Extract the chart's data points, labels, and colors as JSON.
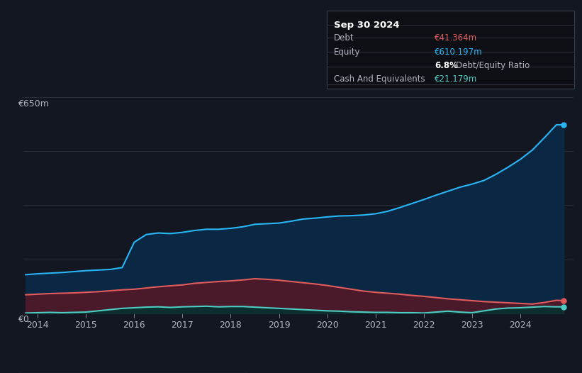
{
  "background_color": "#131722",
  "plot_bg_color": "#131722",
  "tooltip": {
    "date": "Sep 30 2024",
    "debt_label": "Debt",
    "debt_value": "€41.364m",
    "equity_label": "Equity",
    "equity_value": "€610.197m",
    "ratio_value": "6.8%",
    "ratio_label": "Debt/Equity Ratio",
    "cash_label": "Cash And Equivalents",
    "cash_value": "€21.179m"
  },
  "ylabel_top": "€650m",
  "ylabel_zero": "€0",
  "ylim": [
    0,
    700
  ],
  "xlim_start": 2013.7,
  "xlim_end": 2025.1,
  "x_ticks": [
    2014,
    2015,
    2016,
    2017,
    2018,
    2019,
    2020,
    2021,
    2022,
    2023,
    2024
  ],
  "grid_color": "#2a2e39",
  "line_color_debt": "#e05c5c",
  "line_color_equity": "#29b6f6",
  "line_color_cash": "#4ecdc4",
  "fill_color_debt": "#4a1a2a",
  "fill_color_equity": "#0a2744",
  "fill_color_cash": "#0d2e2e",
  "legend_box_color": "#1e222d",
  "legend_border_color": "#363a45",
  "text_color_main": "#b2b5be",
  "text_color_debt_val": "#e05c5c",
  "text_color_equity_val": "#29b6f6",
  "text_color_cash_val": "#4ecdc4",
  "text_color_white": "#ffffff",
  "equity_data": {
    "years": [
      2013.75,
      2014.0,
      2014.25,
      2014.5,
      2014.75,
      2015.0,
      2015.25,
      2015.5,
      2015.75,
      2016.0,
      2016.25,
      2016.5,
      2016.75,
      2017.0,
      2017.25,
      2017.5,
      2017.75,
      2018.0,
      2018.25,
      2018.5,
      2018.75,
      2019.0,
      2019.25,
      2019.5,
      2019.75,
      2020.0,
      2020.25,
      2020.5,
      2020.75,
      2021.0,
      2021.25,
      2021.5,
      2021.75,
      2022.0,
      2022.25,
      2022.5,
      2022.75,
      2023.0,
      2023.25,
      2023.5,
      2023.75,
      2024.0,
      2024.25,
      2024.5,
      2024.75,
      2024.9
    ],
    "values": [
      125,
      128,
      130,
      132,
      135,
      138,
      140,
      142,
      148,
      230,
      255,
      260,
      258,
      262,
      268,
      272,
      272,
      275,
      280,
      288,
      290,
      292,
      298,
      305,
      308,
      312,
      315,
      316,
      318,
      322,
      330,
      342,
      355,
      368,
      382,
      395,
      408,
      418,
      430,
      450,
      473,
      498,
      528,
      568,
      610,
      610
    ]
  },
  "debt_data": {
    "years": [
      2013.75,
      2014.0,
      2014.25,
      2014.5,
      2014.75,
      2015.0,
      2015.25,
      2015.5,
      2015.75,
      2016.0,
      2016.25,
      2016.5,
      2016.75,
      2017.0,
      2017.25,
      2017.5,
      2017.75,
      2018.0,
      2018.25,
      2018.5,
      2018.75,
      2019.0,
      2019.25,
      2019.5,
      2019.75,
      2020.0,
      2020.25,
      2020.5,
      2020.75,
      2021.0,
      2021.25,
      2021.5,
      2021.75,
      2022.0,
      2022.25,
      2022.5,
      2022.75,
      2023.0,
      2023.25,
      2023.5,
      2023.75,
      2024.0,
      2024.25,
      2024.5,
      2024.75,
      2024.9
    ],
    "values": [
      60,
      62,
      64,
      65,
      66,
      68,
      70,
      73,
      76,
      78,
      82,
      86,
      89,
      92,
      97,
      100,
      103,
      105,
      108,
      112,
      110,
      107,
      103,
      99,
      95,
      90,
      84,
      78,
      72,
      68,
      65,
      62,
      58,
      55,
      51,
      47,
      44,
      41,
      38,
      36,
      34,
      32,
      30,
      35,
      42,
      41
    ]
  },
  "cash_data": {
    "years": [
      2013.75,
      2014.0,
      2014.25,
      2014.5,
      2014.75,
      2015.0,
      2015.25,
      2015.5,
      2015.75,
      2016.0,
      2016.25,
      2016.5,
      2016.75,
      2017.0,
      2017.25,
      2017.5,
      2017.75,
      2018.0,
      2018.25,
      2018.5,
      2018.75,
      2019.0,
      2019.25,
      2019.5,
      2019.75,
      2020.0,
      2020.25,
      2020.5,
      2020.75,
      2021.0,
      2021.25,
      2021.5,
      2021.75,
      2022.0,
      2022.25,
      2022.5,
      2022.75,
      2023.0,
      2023.25,
      2023.5,
      2023.75,
      2024.0,
      2024.25,
      2024.5,
      2024.75,
      2024.9
    ],
    "values": [
      1,
      2,
      3,
      2,
      3,
      4,
      8,
      12,
      16,
      18,
      20,
      21,
      19,
      21,
      22,
      23,
      21,
      22,
      22,
      20,
      18,
      16,
      14,
      12,
      10,
      8,
      7,
      5,
      4,
      3,
      3,
      2,
      2,
      1,
      4,
      7,
      4,
      2,
      8,
      14,
      17,
      18,
      20,
      22,
      21,
      21
    ]
  },
  "legend_labels": [
    "Debt",
    "Equity",
    "Cash And Equivalents"
  ]
}
